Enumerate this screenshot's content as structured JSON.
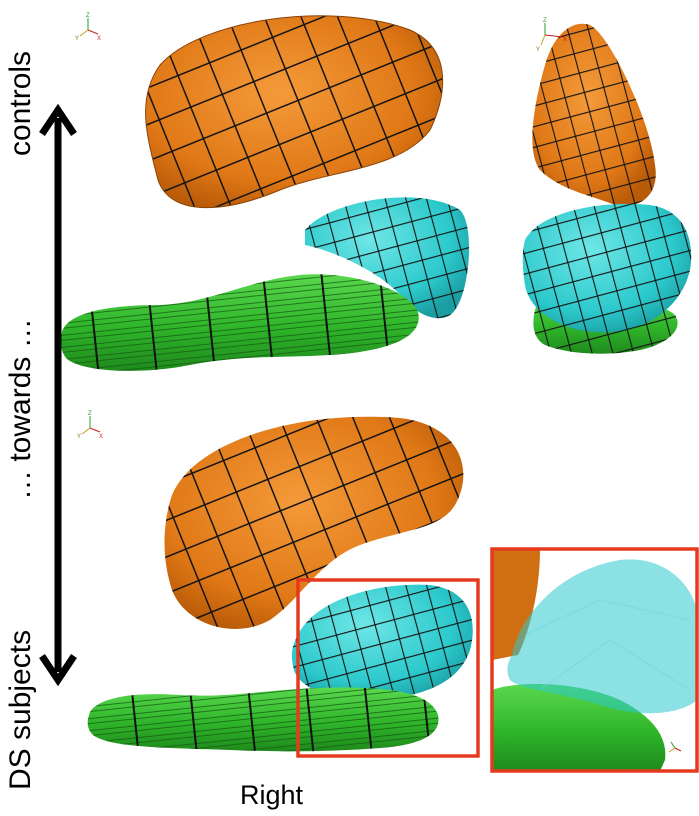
{
  "labels": {
    "left_top": "controls",
    "left_middle": "… towards …",
    "left_bottom": "DS subjects",
    "bottom_center": "Right"
  },
  "axis_triad": {
    "z": "Z",
    "y": "Y",
    "x": "X"
  },
  "colors": {
    "orange": "#e07816",
    "cyan": "#2cc9cc",
    "green": "#2fb52a",
    "grid": "#141414",
    "highlight": "#e63a1e",
    "arrow": "#000000"
  }
}
